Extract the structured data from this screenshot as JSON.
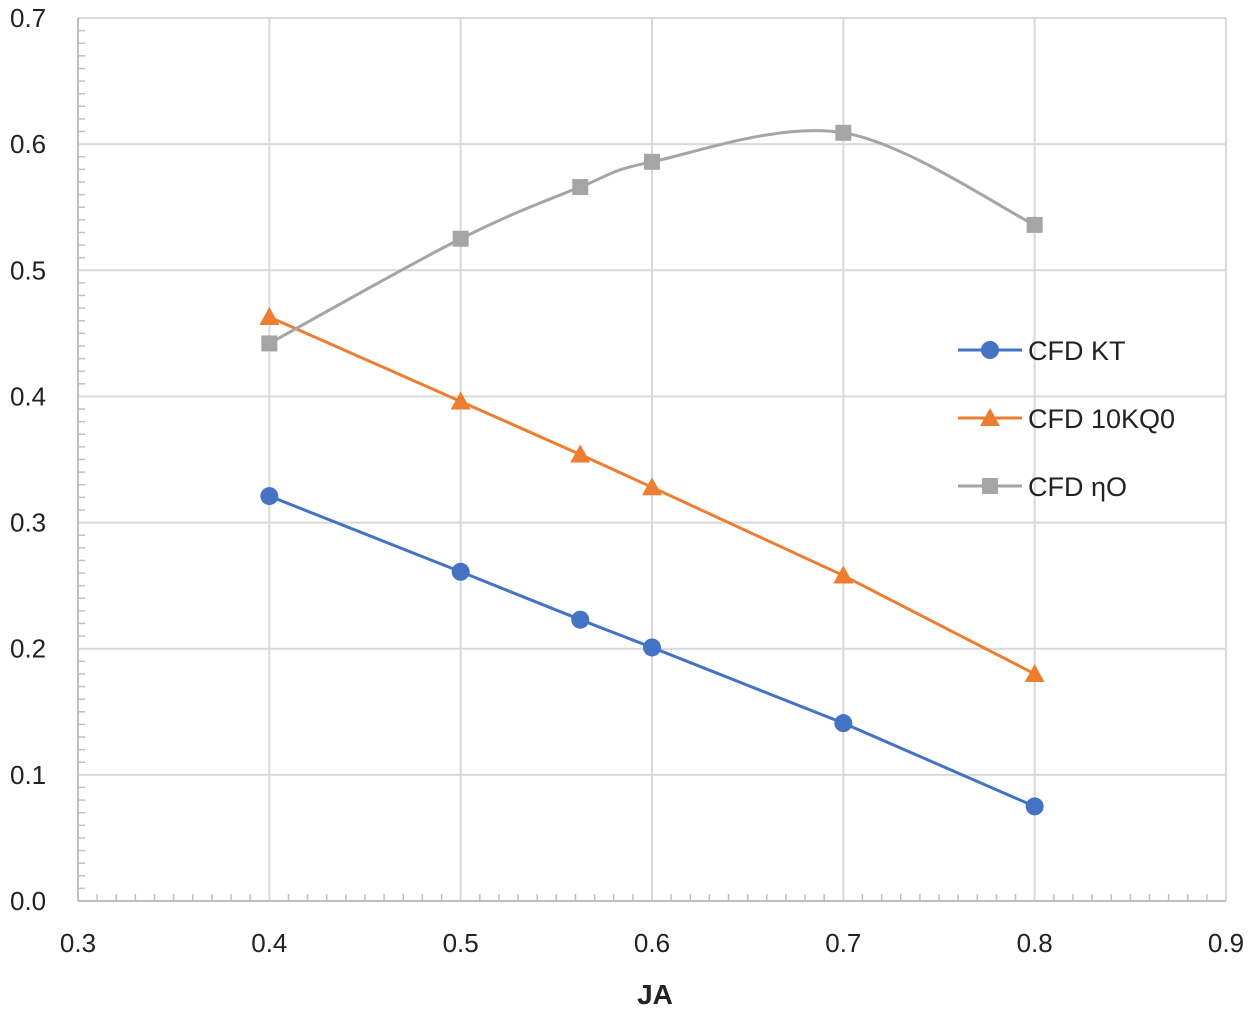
{
  "chart_data": {
    "type": "line",
    "title": "",
    "xlabel": "JA",
    "ylabel": "",
    "xlim": [
      0.3,
      0.9
    ],
    "ylim": [
      0.0,
      0.7
    ],
    "xticks": [
      "0.3",
      "0.4",
      "0.5",
      "0.6",
      "0.7",
      "0.8",
      "0.9"
    ],
    "yticks": [
      "0.0",
      "0.1",
      "0.2",
      "0.3",
      "0.4",
      "0.5",
      "0.6",
      "0.7"
    ],
    "grid": true,
    "legend_position": "right",
    "series": [
      {
        "name": "CFD KT",
        "color": "#4472C4",
        "marker": "circle",
        "smooth": false,
        "x": [
          0.4,
          0.5,
          0.5625,
          0.6,
          0.7,
          0.8
        ],
        "y": [
          0.321,
          0.261,
          0.223,
          0.201,
          0.141,
          0.075
        ]
      },
      {
        "name": "CFD 10KQ0",
        "color": "#ED7D31",
        "marker": "triangle",
        "smooth": false,
        "x": [
          0.4,
          0.5,
          0.5625,
          0.6,
          0.7,
          0.8
        ],
        "y": [
          0.463,
          0.396,
          0.354,
          0.328,
          0.258,
          0.18
        ]
      },
      {
        "name": "CFD ηO",
        "color": "#A5A5A5",
        "marker": "square",
        "smooth": true,
        "x": [
          0.4,
          0.5,
          0.5625,
          0.6,
          0.7,
          0.8
        ],
        "y": [
          0.442,
          0.525,
          0.566,
          0.586,
          0.609,
          0.536
        ]
      }
    ]
  }
}
